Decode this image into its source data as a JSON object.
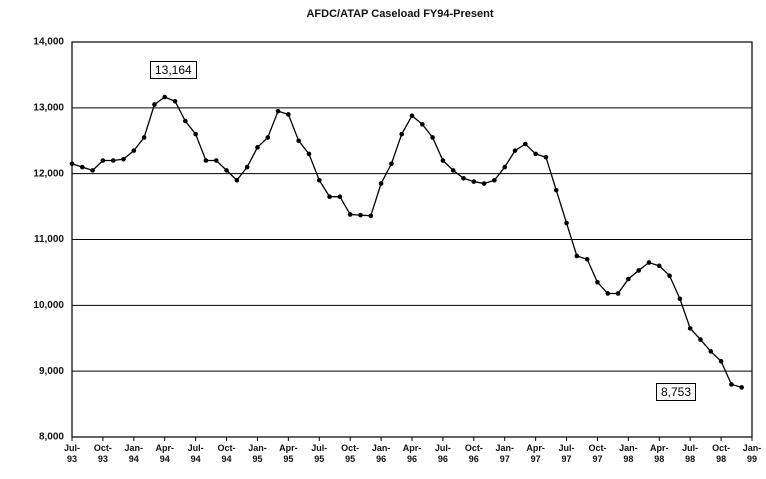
{
  "chart_data": {
    "type": "line",
    "title": "AFDC/ATAP Caseload FY94-Present",
    "categories": [
      "Jul-\n93",
      null,
      null,
      "Oct-\n93",
      null,
      null,
      "Jan-\n94",
      null,
      null,
      "Apr-\n94",
      null,
      null,
      "Jul-\n94",
      null,
      null,
      "Oct-\n94",
      null,
      null,
      "Jan-\n95",
      null,
      null,
      "Apr-\n95",
      null,
      null,
      "Jul-\n95",
      null,
      null,
      "Oct-\n95",
      null,
      null,
      "Jan-\n96",
      null,
      null,
      "Apr-\n96",
      null,
      null,
      "Jul-\n96",
      null,
      null,
      "Oct-\n96",
      null,
      null,
      "Jan-\n97",
      null,
      null,
      "Apr-\n97",
      null,
      null,
      "Jul-\n97",
      null,
      null,
      "Oct-\n97",
      null,
      null,
      "Jan-\n98",
      null,
      null,
      "Apr-\n98",
      null,
      null,
      "Jul-\n98",
      null,
      null,
      "Oct-\n98",
      null,
      null,
      "Jan-\n99"
    ],
    "series": [
      {
        "name": "Caseload",
        "color": "#000000",
        "values": [
          12150,
          12100,
          12050,
          12200,
          12200,
          12220,
          12350,
          12550,
          13050,
          13164,
          13100,
          12800,
          12600,
          12200,
          12200,
          12050,
          11900,
          12100,
          12400,
          12550,
          12950,
          12900,
          12500,
          12300,
          11900,
          11650,
          11650,
          11380,
          11370,
          11360,
          11850,
          12150,
          12600,
          12880,
          12750,
          12550,
          12200,
          12050,
          11930,
          11880,
          11850,
          11900,
          12100,
          12350,
          12450,
          12300,
          12250,
          11750,
          11250,
          10750,
          10700,
          10350,
          10180,
          10180,
          10400,
          10530,
          10650,
          10600,
          10450,
          10100,
          9650,
          9480,
          9300,
          9150,
          8800,
          8753,
          null
        ]
      }
    ],
    "annotations": [
      {
        "text": "13,164"
      },
      {
        "text": "8,753"
      }
    ],
    "ylim": [
      8000,
      14000
    ],
    "yticks": [
      {
        "value": 8000,
        "label": "8,000"
      },
      {
        "value": 9000,
        "label": "9,000"
      },
      {
        "value": 10000,
        "label": "10,000"
      },
      {
        "value": 11000,
        "label": "11,000"
      },
      {
        "value": 12000,
        "label": "12,000"
      },
      {
        "value": 13000,
        "label": "13,000"
      },
      {
        "value": 14000,
        "label": "14,000"
      }
    ],
    "grid": true
  }
}
